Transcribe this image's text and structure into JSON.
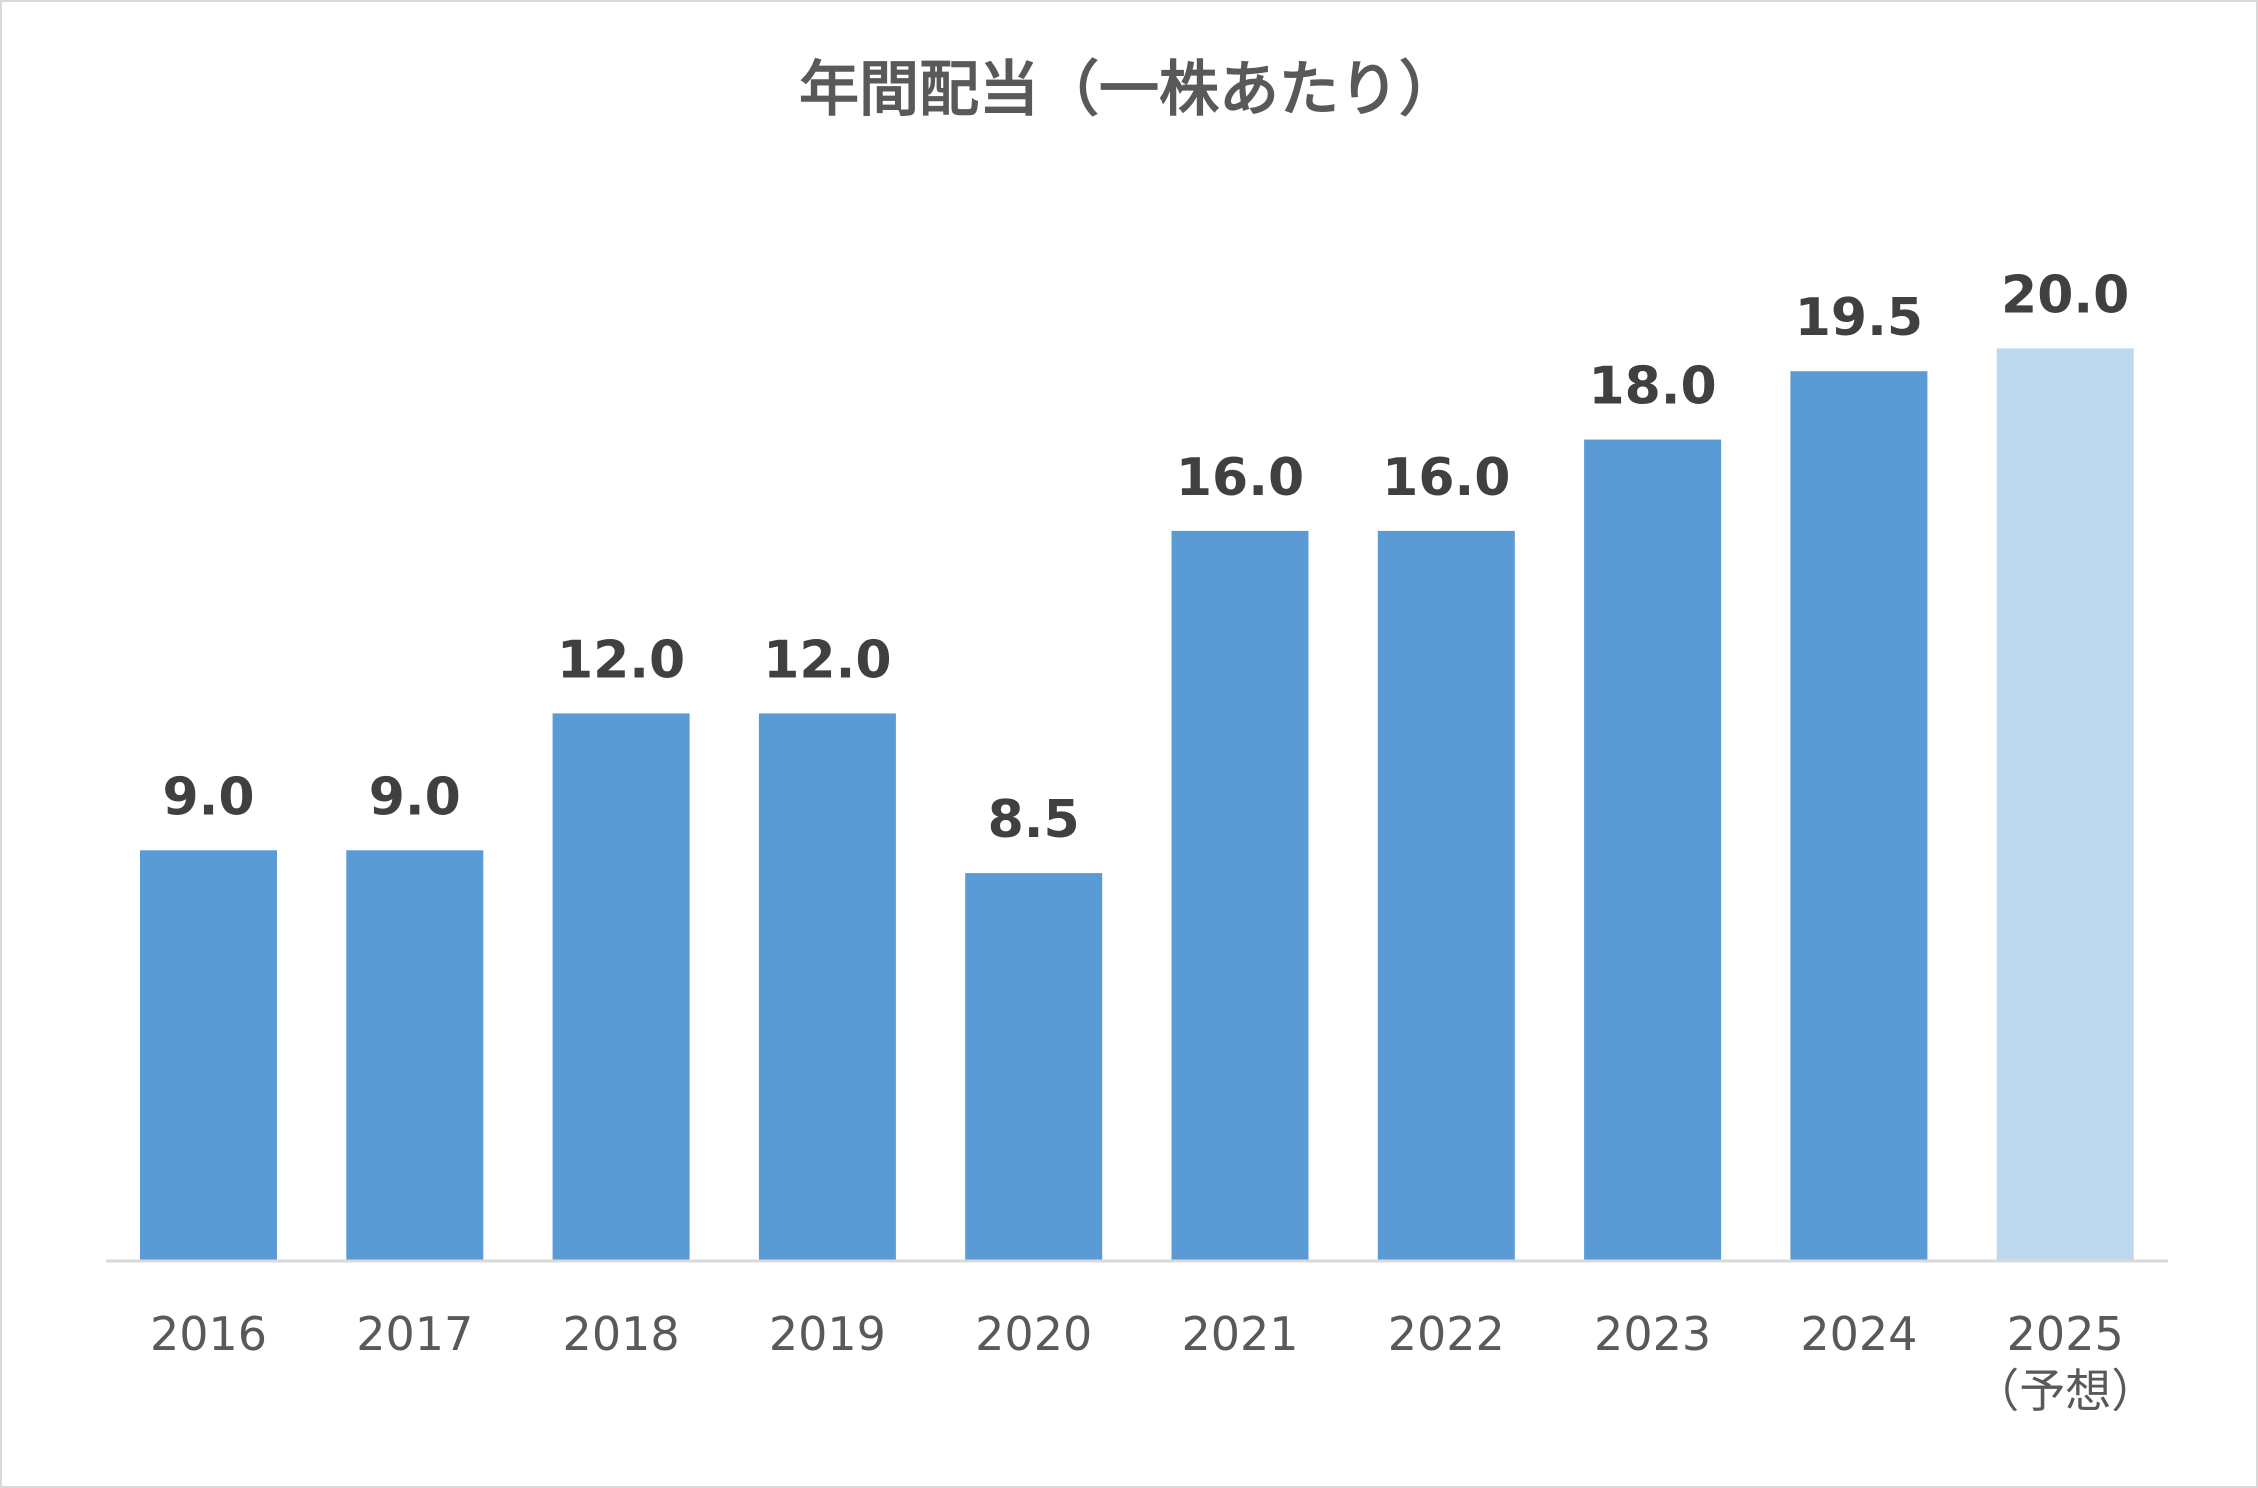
{
  "chart_data": {
    "type": "bar",
    "title": "年間配当（一株あたり）",
    "categories": [
      "2016",
      "2017",
      "2018",
      "2019",
      "2020",
      "2021",
      "2022",
      "2023",
      "2024",
      "2025"
    ],
    "category_sublabels": [
      "",
      "",
      "",
      "",
      "",
      "",
      "",
      "",
      "",
      "（予想）"
    ],
    "values": [
      9.0,
      9.0,
      12.0,
      12.0,
      8.5,
      16.0,
      16.0,
      18.0,
      19.5,
      20.0
    ],
    "value_labels": [
      "9.0",
      "9.0",
      "12.0",
      "12.0",
      "8.5",
      "16.0",
      "16.0",
      "18.0",
      "19.5",
      "20.0"
    ],
    "forecast": [
      false,
      false,
      false,
      false,
      false,
      false,
      false,
      false,
      false,
      true
    ],
    "ylim": [
      0,
      20.6
    ],
    "grid": false,
    "legend": "none",
    "colors": {
      "bar": "#5b9bd5",
      "forecast_bar": "#bdd7ee",
      "axis": "#d9d9d9"
    }
  }
}
